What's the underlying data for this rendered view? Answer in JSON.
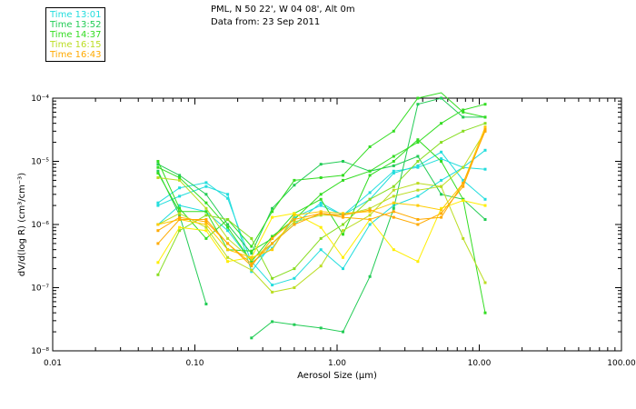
{
  "title_lines": [
    "PML, N 50 22', W 04 08', Alt 0m",
    "Data from: 23 Sep 2011"
  ],
  "legend": [
    {
      "label": "Time 13:01",
      "color": "#22dddd"
    },
    {
      "label": "Time 13:52",
      "color": "#22cc55"
    },
    {
      "label": "Time 14:37",
      "color": "#33dd22"
    },
    {
      "label": "Time 16:15",
      "color": "#bbdd22"
    },
    {
      "label": "Time 16:43",
      "color": "#ffaa00"
    }
  ],
  "chart_data": {
    "type": "line",
    "xscale": "log",
    "yscale": "log",
    "xlim": [
      0.01,
      100
    ],
    "ylim": [
      1e-08,
      0.0001
    ],
    "xlabel": "Aerosol Size (μm)",
    "ylabel": "dV/d(log R) (cm³/cm⁻³)",
    "x_tick_labels": [
      "0.01",
      "0.10",
      "1.00",
      "10.00",
      "100.00"
    ],
    "x_tick_values": [
      0.01,
      0.1,
      1,
      10,
      100
    ],
    "y_tick_labels": [
      "10⁻⁸",
      "10⁻⁷",
      "10⁻⁶",
      "10⁻⁵",
      "10⁻⁴"
    ],
    "y_tick_values": [
      1e-08,
      1e-07,
      1e-06,
      1e-05,
      0.0001
    ],
    "x": [
      0.055,
      0.078,
      0.12,
      0.17,
      0.25,
      0.35,
      0.5,
      0.77,
      1.1,
      1.7,
      2.5,
      3.7,
      5.4,
      7.7,
      11
    ],
    "series": [
      {
        "color": "#22dddd",
        "values": [
          2.2e-06,
          3.8e-06,
          4.6e-06,
          2.6e-06,
          2.5e-07,
          4.2e-07,
          1.3e-06,
          2e-06,
          1.4e-06,
          3.2e-06,
          7e-06,
          8e-06,
          1.1e-05,
          8e-06,
          7.5e-06
        ]
      },
      {
        "color": "#22dddd",
        "values": [
          2e-06,
          2.8e-06,
          4e-06,
          3e-06,
          1.8e-07,
          5e-07,
          1e-06,
          2.2e-06,
          1.4e-06,
          2.5e-06,
          6.5e-06,
          8.5e-06,
          1.4e-05,
          5e-06,
          2.5e-06
        ]
      },
      {
        "color": "#22dddd",
        "values": [
          1e-06,
          2e-06,
          1.6e-06,
          8e-07,
          2.6e-07,
          1.1e-07,
          1.4e-07,
          4e-07,
          2e-07,
          1e-06,
          2e-06,
          2.8e-06,
          5e-06,
          8e-06,
          1.5e-05
        ]
      },
      {
        "color": "#22cc55",
        "values": [
          null,
          null,
          null,
          null,
          1.6e-08,
          2.9e-08,
          2.6e-08,
          2.3e-08,
          2e-08,
          1.5e-07,
          1.8e-06,
          8e-05,
          0.0001,
          5e-05,
          5e-05
        ]
      },
      {
        "color": "#22cc55",
        "values": [
          7e-06,
          1.4e-06,
          5.5e-08,
          null,
          null,
          null,
          null,
          null,
          null,
          null,
          null,
          null,
          null,
          null,
          null
        ]
      },
      {
        "color": "#22cc55",
        "values": [
          9e-06,
          6e-06,
          3e-06,
          1e-06,
          3.5e-07,
          1.8e-06,
          4.2e-06,
          9e-06,
          1e-05,
          7e-06,
          8.5e-06,
          1.2e-05,
          3e-06,
          2.5e-06,
          1.2e-06
        ]
      },
      {
        "color": "#33dd22",
        "values": [
          1e-05,
          1.8e-06,
          6e-07,
          1.2e-06,
          4.5e-07,
          1.6e-06,
          5e-06,
          5.5e-06,
          6e-06,
          1.7e-05,
          3e-05,
          0.0001,
          0.00013,
          6e-05,
          5e-05
        ]
      },
      {
        "color": "#33dd22",
        "values": [
          6.5e-06,
          1.6e-06,
          1.6e-06,
          4e-07,
          3.8e-07,
          6e-07,
          1.5e-06,
          2.5e-06,
          7e-07,
          6e-06,
          1e-05,
          2.2e-05,
          1e-05,
          2.5e-06,
          4e-08
        ]
      },
      {
        "color": "#33dd22",
        "values": [
          8e-06,
          5.5e-06,
          2.2e-06,
          9e-07,
          2.6e-07,
          6.5e-07,
          1.2e-06,
          3e-06,
          5e-06,
          7e-06,
          1.2e-05,
          2e-05,
          4e-05,
          6.5e-05,
          8e-05
        ]
      },
      {
        "color": "#88dd22",
        "values": [
          1.6e-07,
          8e-07,
          1.4e-06,
          1.2e-06,
          6e-07,
          1.4e-07,
          2e-07,
          6e-07,
          1e-06,
          2.5e-06,
          4e-06,
          1e-05,
          2e-05,
          3e-05,
          4e-05
        ]
      },
      {
        "color": "#bbdd22",
        "values": [
          1e-06,
          1.5e-06,
          9e-07,
          3e-07,
          1.9e-07,
          8.5e-08,
          1e-07,
          2.2e-07,
          8e-07,
          1.4e-06,
          3.5e-06,
          4.5e-06,
          4e-06,
          6e-07,
          1.2e-07
        ]
      },
      {
        "color": "#bbdd22",
        "values": [
          5.5e-06,
          5e-06,
          1.8e-06,
          6e-07,
          2.8e-07,
          5e-07,
          1.1e-06,
          1.4e-06,
          1.4e-06,
          1.8e-06,
          2.8e-06,
          3.5e-06,
          4e-06,
          8e-06,
          3e-05
        ]
      },
      {
        "color": "#ffee00",
        "values": [
          2.5e-07,
          9e-07,
          8e-07,
          2.6e-07,
          3e-07,
          1.3e-06,
          1.5e-06,
          9e-07,
          3e-07,
          1.2e-06,
          4e-07,
          2.6e-07,
          1.8e-06,
          2.4e-06,
          2e-06
        ]
      },
      {
        "color": "#ffcc00",
        "values": [
          1e-06,
          1.2e-06,
          1e-06,
          4e-07,
          3e-07,
          4e-07,
          1.4e-06,
          1.6e-06,
          1.5e-06,
          1.6e-06,
          2.2e-06,
          2e-06,
          1.7e-06,
          4.5e-06,
          3.5e-05
        ]
      },
      {
        "color": "#ffaa00",
        "values": [
          8e-07,
          1.3e-06,
          1.1e-06,
          5e-07,
          2.4e-07,
          5e-07,
          1e-06,
          1.5e-06,
          1.3e-06,
          1.2e-06,
          1.6e-06,
          1.2e-06,
          1.3e-06,
          4.5e-06,
          3e-05
        ]
      },
      {
        "color": "#ffaa00",
        "values": [
          5e-07,
          1.2e-06,
          1.2e-06,
          5e-07,
          2.2e-07,
          6e-07,
          1.2e-06,
          1.5e-06,
          1.4e-06,
          1.7e-06,
          1.3e-06,
          1e-06,
          1.5e-06,
          4e-06,
          3.2e-05
        ]
      }
    ]
  }
}
